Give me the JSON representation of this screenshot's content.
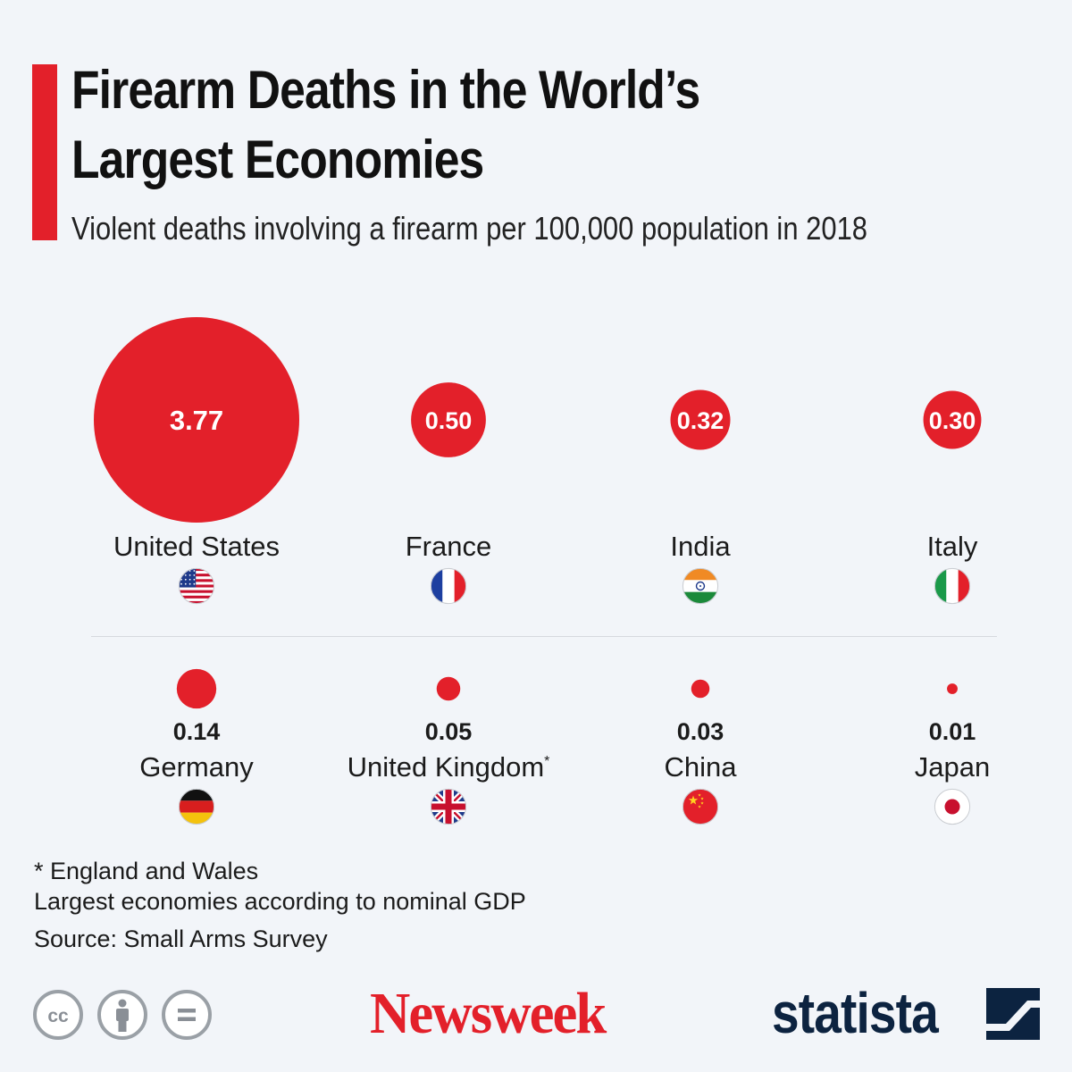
{
  "header": {
    "title_line1": "Firearm Deaths in the World’s",
    "title_line2": "Largest Economies",
    "subtitle": "Violent deaths involving a firearm per 100,000 population in 2018"
  },
  "chart_data": {
    "type": "bubble",
    "title": "Firearm Deaths in the World’s Largest Economies",
    "subtitle": "Violent deaths involving a firearm per 100,000 population in 2018",
    "categories": [
      "United States",
      "France",
      "India",
      "Italy",
      "Germany",
      "United Kingdom",
      "China",
      "Japan"
    ],
    "values": [
      3.77,
      0.5,
      0.32,
      0.3,
      0.14,
      0.05,
      0.03,
      0.01
    ],
    "value_labels": [
      "3.77",
      "0.50",
      "0.32",
      "0.30",
      "0.14",
      "0.05",
      "0.03",
      "0.01"
    ],
    "label_markers": [
      "",
      "",
      "",
      "",
      "",
      "*",
      "",
      ""
    ],
    "flags": [
      "us-flag-icon",
      "france-flag-icon",
      "india-flag-icon",
      "italy-flag-icon",
      "germany-flag-icon",
      "uk-flag-icon",
      "china-flag-icon",
      "japan-flag-icon"
    ],
    "bubble_color": "#e3202a"
  },
  "footer": {
    "note": "* England and Wales",
    "note2": "Largest economies according to nominal GDP",
    "source": "Source: Small Arms Survey",
    "license_icons": [
      "creative-commons-icon",
      "attribution-icon",
      "no-derivatives-icon"
    ],
    "publisher": "Newsweek",
    "brand": "statista"
  },
  "colors": {
    "accent": "#e3202a",
    "background": "#f2f5f9",
    "brand_navy": "#0c2340"
  }
}
